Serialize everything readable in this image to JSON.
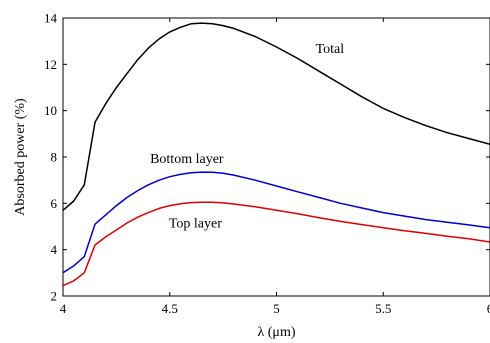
{
  "chart_data": {
    "type": "line",
    "xlabel": "λ (μm)",
    "ylabel": "Absorbed power (%)",
    "xlim": [
      4,
      6
    ],
    "ylim": [
      2,
      14
    ],
    "xticks": [
      4,
      4.5,
      5,
      5.5,
      6
    ],
    "xtick_labels": [
      "4",
      "4.5",
      "5",
      "5.5",
      "6"
    ],
    "yticks": [
      2,
      4,
      6,
      8,
      10,
      12,
      14
    ],
    "ytick_labels": [
      "2",
      "4",
      "6",
      "8",
      "10",
      "12",
      "14"
    ],
    "grid": false,
    "legend": "none",
    "series": [
      {
        "name": "Total",
        "color": "#000000",
        "x": [
          4.0,
          4.05,
          4.1,
          4.15,
          4.2,
          4.25,
          4.3,
          4.35,
          4.4,
          4.45,
          4.5,
          4.55,
          4.6,
          4.65,
          4.7,
          4.75,
          4.8,
          4.9,
          5.0,
          5.1,
          5.2,
          5.3,
          5.4,
          5.5,
          5.6,
          5.7,
          5.8,
          5.9,
          6.0
        ],
        "y": [
          5.7,
          6.1,
          6.8,
          9.5,
          10.3,
          11.0,
          11.6,
          12.2,
          12.7,
          13.1,
          13.4,
          13.6,
          13.75,
          13.78,
          13.75,
          13.67,
          13.55,
          13.2,
          12.75,
          12.25,
          11.7,
          11.15,
          10.6,
          10.1,
          9.7,
          9.35,
          9.05,
          8.8,
          8.55
        ]
      },
      {
        "name": "Bottom layer",
        "color": "#0000cc",
        "x": [
          4.0,
          4.05,
          4.1,
          4.15,
          4.2,
          4.25,
          4.3,
          4.35,
          4.4,
          4.45,
          4.5,
          4.55,
          4.6,
          4.65,
          4.7,
          4.75,
          4.8,
          4.9,
          5.0,
          5.1,
          5.2,
          5.3,
          5.4,
          5.5,
          5.6,
          5.7,
          5.8,
          5.9,
          6.0
        ],
        "y": [
          3.0,
          3.3,
          3.7,
          5.1,
          5.5,
          5.9,
          6.25,
          6.55,
          6.8,
          7.0,
          7.15,
          7.25,
          7.32,
          7.35,
          7.34,
          7.3,
          7.22,
          7.0,
          6.75,
          6.5,
          6.25,
          6.0,
          5.8,
          5.6,
          5.45,
          5.3,
          5.18,
          5.07,
          4.95
        ]
      },
      {
        "name": "Top layer",
        "color": "#dd0000",
        "x": [
          4.0,
          4.05,
          4.1,
          4.15,
          4.2,
          4.25,
          4.3,
          4.35,
          4.4,
          4.45,
          4.5,
          4.55,
          4.6,
          4.65,
          4.7,
          4.75,
          4.8,
          4.9,
          5.0,
          5.1,
          5.2,
          5.3,
          5.4,
          5.5,
          5.6,
          5.7,
          5.8,
          5.9,
          6.0
        ],
        "y": [
          2.45,
          2.65,
          3.0,
          4.2,
          4.55,
          4.85,
          5.15,
          5.4,
          5.6,
          5.78,
          5.9,
          5.98,
          6.03,
          6.05,
          6.05,
          6.02,
          5.97,
          5.85,
          5.7,
          5.55,
          5.38,
          5.22,
          5.08,
          4.95,
          4.82,
          4.7,
          4.58,
          4.47,
          4.33
        ]
      }
    ],
    "annotations": [
      {
        "text": "Total",
        "x": 5.25,
        "y": 12.5
      },
      {
        "text": "Bottom layer",
        "x": 4.58,
        "y": 7.75
      },
      {
        "text": "Top layer",
        "x": 4.62,
        "y": 4.95
      }
    ]
  }
}
